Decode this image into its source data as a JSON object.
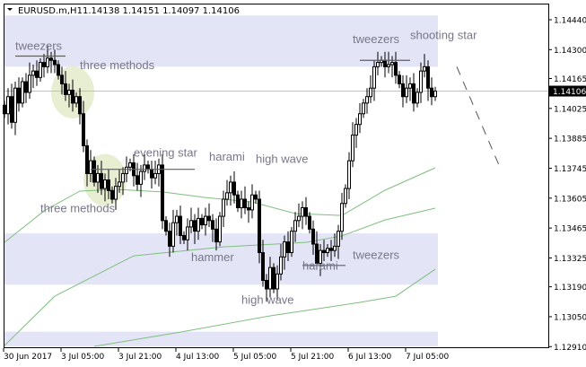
{
  "header": {
    "symbol": "EURUSD.m,H1",
    "ohlc": "1.14138 1.14151 1.14097 1.14106",
    "menu_icon": "triangle-down-icon"
  },
  "chart_data": {
    "type": "candlestick",
    "ylim": [
      1.1291,
      1.1453
    ],
    "current_price": "1.14106",
    "y_ticks": [
      "1.14440",
      "1.14300",
      "1.14165",
      "1.14025",
      "1.13885",
      "1.13745",
      "1.13605",
      "1.13465",
      "1.13325",
      "1.13190",
      "1.13050",
      "1.12910"
    ],
    "x_ticks": [
      {
        "label": "30 Jun 2017",
        "index": 0
      },
      {
        "label": "3 Jul 05:00",
        "index": 16
      },
      {
        "label": "3 Jul 21:00",
        "index": 32
      },
      {
        "label": "4 Jul 13:00",
        "index": 48
      },
      {
        "label": "5 Jul 05:00",
        "index": 64
      },
      {
        "label": "5 Jul 21:00",
        "index": 80
      },
      {
        "label": "6 Jul 13:00",
        "index": 96
      },
      {
        "label": "7 Jul 05:00",
        "index": 112
      }
    ],
    "closes": [
      1.14,
      1.1408,
      1.1396,
      1.1412,
      1.1405,
      1.1415,
      1.141,
      1.1418,
      1.142,
      1.1417,
      1.1424,
      1.1422,
      1.1426,
      1.1425,
      1.1423,
      1.1418,
      1.1414,
      1.1409,
      1.1411,
      1.1405,
      1.1408,
      1.14,
      1.1385,
      1.1372,
      1.1378,
      1.1368,
      1.1372,
      1.1365,
      1.1369,
      1.1364,
      1.136,
      1.1366,
      1.1368,
      1.1372,
      1.1375,
      1.1377,
      1.1371,
      1.1367,
      1.1373,
      1.1376,
      1.1374,
      1.137,
      1.1372,
      1.1376,
      1.135,
      1.1345,
      1.1338,
      1.1349,
      1.1352,
      1.1343,
      1.1341,
      1.1347,
      1.135,
      1.1345,
      1.1351,
      1.1348,
      1.1352,
      1.135,
      1.1346,
      1.134,
      1.1352,
      1.136,
      1.1363,
      1.1368,
      1.1362,
      1.1356,
      1.136,
      1.1356,
      1.1355,
      1.1362,
      1.136,
      1.1335,
      1.1322,
      1.1318,
      1.1328,
      1.1318,
      1.1325,
      1.1333,
      1.134,
      1.1335,
      1.1345,
      1.135,
      1.1352,
      1.1356,
      1.1352,
      1.1346,
      1.1339,
      1.133,
      1.1336,
      1.1335,
      1.1337,
      1.1336,
      1.1338,
      1.1345,
      1.1358,
      1.1365,
      1.1378,
      1.139,
      1.1395,
      1.14,
      1.1405,
      1.1408,
      1.1412,
      1.1422,
      1.1424,
      1.1425,
      1.1422,
      1.1423,
      1.1424,
      1.1418,
      1.1414,
      1.1408,
      1.1412,
      1.1414,
      1.1405,
      1.141,
      1.142,
      1.1422,
      1.1412,
      1.1408,
      1.14106
    ],
    "moving_averages": [
      {
        "color": "#7fbf7f",
        "points": [
          [
            0,
            1.13398
          ],
          [
            11,
            1.13545
          ],
          [
            21,
            1.13638
          ],
          [
            31,
            1.13646
          ],
          [
            44,
            1.13634
          ],
          [
            56,
            1.13608
          ],
          [
            69,
            1.13587
          ],
          [
            81,
            1.13533
          ],
          [
            94,
            1.13524
          ],
          [
            106,
            1.13642
          ],
          [
            120,
            1.13747
          ]
        ]
      },
      {
        "color": "#7fbf7f",
        "points": [
          [
            0,
            1.12915
          ],
          [
            14,
            1.13146
          ],
          [
            36,
            1.13335
          ],
          [
            61,
            1.13377
          ],
          [
            84,
            1.13398
          ],
          [
            94,
            1.13428
          ],
          [
            106,
            1.13503
          ],
          [
            120,
            1.13558
          ]
        ]
      },
      {
        "color": "#7fbf7f",
        "points": [
          [
            25,
            1.12911
          ],
          [
            49,
            1.12978
          ],
          [
            74,
            1.13054
          ],
          [
            99,
            1.13117
          ],
          [
            109,
            1.13146
          ],
          [
            120,
            1.13272
          ]
        ]
      }
    ],
    "zones": [
      {
        "from": 1.1422,
        "to": 1.1446
      },
      {
        "from": 1.132,
        "to": 1.1344
      },
      {
        "from": 1.1291,
        "to": 1.1298
      }
    ],
    "highlights": [
      {
        "index": 19,
        "price": 1.141
      },
      {
        "index": 28,
        "price": 1.1369
      }
    ],
    "annotations": [
      {
        "text": "tweezers",
        "index": 3,
        "price": 1.143
      },
      {
        "text": "three methods",
        "index": 21,
        "price": 1.1421
      },
      {
        "text": "evening star",
        "index": 36,
        "price": 1.138
      },
      {
        "text": "harami",
        "index": 57,
        "price": 1.1378
      },
      {
        "text": "high wave",
        "index": 70,
        "price": 1.1377
      },
      {
        "text": "three methods",
        "index": 10,
        "price": 1.1354
      },
      {
        "text": "hammer",
        "index": 52,
        "price": 1.1331
      },
      {
        "text": "harami",
        "index": 83,
        "price": 1.1327
      },
      {
        "text": "tweezers",
        "index": 97,
        "price": 1.1332
      },
      {
        "text": "high wave",
        "index": 66,
        "price": 1.1311
      },
      {
        "text": "tweezers",
        "index": 97,
        "price": 1.1433
      },
      {
        "text": "shooting star",
        "index": 113,
        "price": 1.1435
      }
    ],
    "pattern_lines": [
      {
        "from": 3,
        "to": 17,
        "price": 1.1427
      },
      {
        "from": 24,
        "to": 53,
        "price": 1.1374
      },
      {
        "from": 83,
        "to": 89,
        "price": 1.1329
      },
      {
        "from": 89,
        "to": 95,
        "price": 1.1329
      },
      {
        "from": 99,
        "to": 113,
        "price": 1.1425
      }
    ],
    "forecast_line": {
      "from": [
        126,
        1.1422
      ],
      "to": [
        138,
        1.1375
      ]
    }
  }
}
